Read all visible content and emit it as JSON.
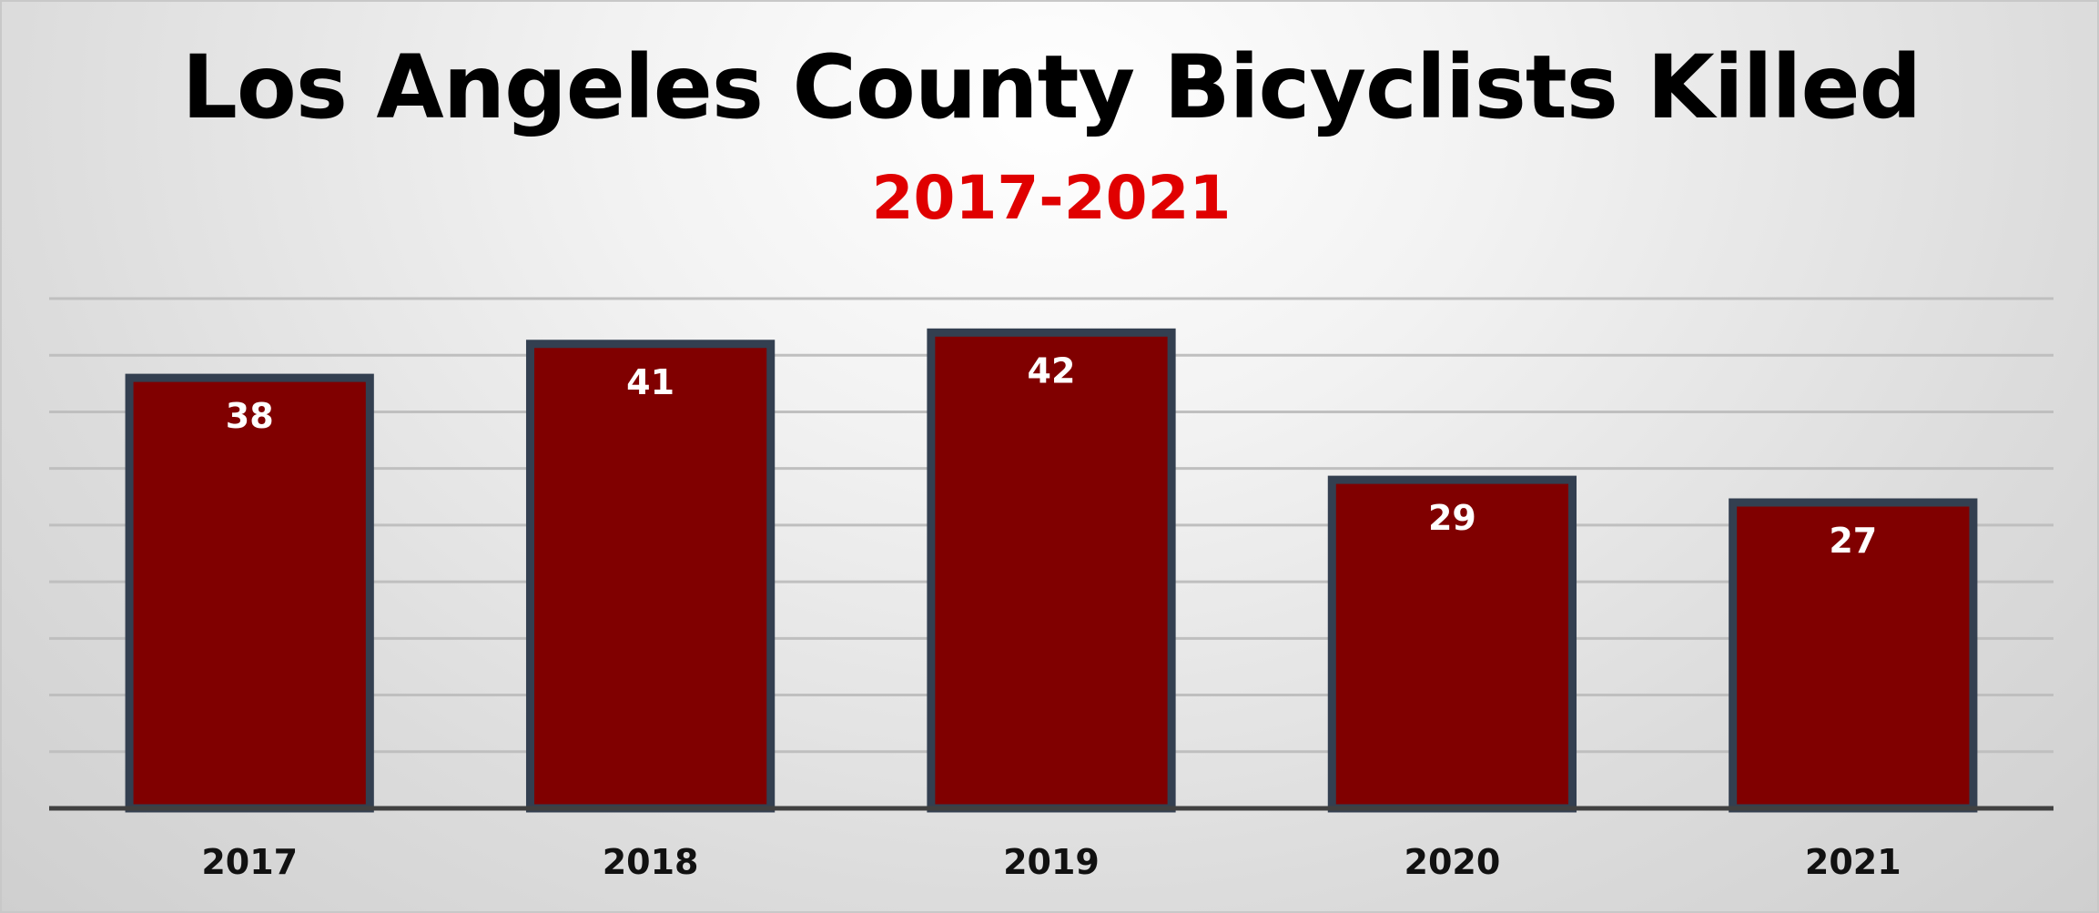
{
  "chart_data": {
    "type": "bar",
    "title": "Los Angeles County Bicyclists Killed",
    "subtitle": "2017-2021",
    "categories": [
      "2017",
      "2018",
      "2019",
      "2020",
      "2021"
    ],
    "values": [
      38,
      41,
      42,
      29,
      27
    ],
    "xlabel": "",
    "ylabel": "",
    "ylim": [
      0,
      45
    ],
    "grid": true,
    "grid_step": 5,
    "legend": "none",
    "colors": {
      "bar_fill": "#800000",
      "bar_border": "#333f50",
      "subtitle": "#e00000",
      "gridline": "#bfbfbf",
      "axis": "#404040"
    }
  }
}
